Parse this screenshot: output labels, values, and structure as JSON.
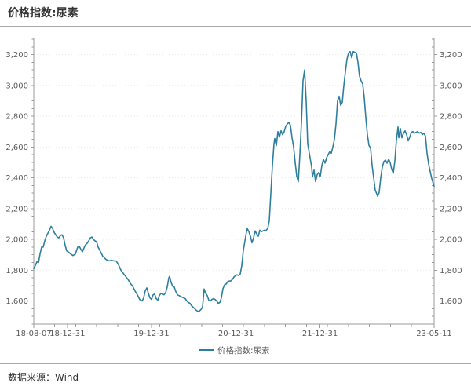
{
  "header": {
    "title": "价格指数:尿素"
  },
  "footer": {
    "source_text": "数据来源：Wind"
  },
  "colors": {
    "line": "#2e7f9e",
    "axis": "#9b9b9b",
    "tick_label": "#595959",
    "grid": "#e7e7e7",
    "title_text": "#333333",
    "divider": "#a9a9a9",
    "footer_text": "#333333"
  },
  "chart_data": {
    "type": "line",
    "title": "价格指数:尿素",
    "legend": "价格指数:尿素",
    "legend_position": "bottom-center",
    "grid": "horizontal-dotted",
    "x_axis": {
      "kind": "time",
      "start_date": "2018-08-07",
      "end_date": "2023-05-11",
      "tick_labels": [
        {
          "label": "18-08-07",
          "t": 0.0
        },
        {
          "label": "18-12-31",
          "t": 0.084
        },
        {
          "label": "19-12-31",
          "t": 0.294
        },
        {
          "label": "20-12-31",
          "t": 0.505
        },
        {
          "label": "21-12-31",
          "t": 0.715
        },
        {
          "label": "23-05-11",
          "t": 1.0
        }
      ],
      "minor_tick_step_t": 0.0524
    },
    "y_axis": {
      "min": 1450,
      "max": 3310,
      "major_ticks": [
        1600,
        1800,
        2000,
        2200,
        2400,
        2600,
        2800,
        3000,
        3200
      ],
      "minor_step": 50,
      "sides": "both",
      "label_format": "thousands-comma"
    },
    "series": [
      {
        "name": "价格指数:尿素",
        "color": "#2e7f9e",
        "points": [
          [
            0.0,
            1810
          ],
          [
            0.0039,
            1830
          ],
          [
            0.0078,
            1855
          ],
          [
            0.0118,
            1850
          ],
          [
            0.0157,
            1905
          ],
          [
            0.0196,
            1950
          ],
          [
            0.0235,
            1950
          ],
          [
            0.0275,
            1990
          ],
          [
            0.0314,
            2020
          ],
          [
            0.0353,
            2040
          ],
          [
            0.0392,
            2060
          ],
          [
            0.0431,
            2085
          ],
          [
            0.0471,
            2070
          ],
          [
            0.051,
            2045
          ],
          [
            0.0549,
            2030
          ],
          [
            0.0588,
            2015
          ],
          [
            0.0627,
            2010
          ],
          [
            0.0667,
            2025
          ],
          [
            0.0706,
            2030
          ],
          [
            0.0745,
            2010
          ],
          [
            0.0784,
            1960
          ],
          [
            0.0824,
            1925
          ],
          [
            0.0882,
            1915
          ],
          [
            0.0922,
            1905
          ],
          [
            0.098,
            1895
          ],
          [
            0.1039,
            1905
          ],
          [
            0.1098,
            1950
          ],
          [
            0.1137,
            1955
          ],
          [
            0.1176,
            1935
          ],
          [
            0.1216,
            1920
          ],
          [
            0.1255,
            1945
          ],
          [
            0.1294,
            1965
          ],
          [
            0.1333,
            1975
          ],
          [
            0.1373,
            1990
          ],
          [
            0.1412,
            2010
          ],
          [
            0.1451,
            2015
          ],
          [
            0.149,
            2000
          ],
          [
            0.1529,
            1990
          ],
          [
            0.1569,
            1985
          ],
          [
            0.1608,
            1950
          ],
          [
            0.1647,
            1930
          ],
          [
            0.1686,
            1910
          ],
          [
            0.1725,
            1890
          ],
          [
            0.1765,
            1880
          ],
          [
            0.1804,
            1870
          ],
          [
            0.1843,
            1865
          ],
          [
            0.1882,
            1860
          ],
          [
            0.1941,
            1865
          ],
          [
            0.2,
            1860
          ],
          [
            0.2059,
            1860
          ],
          [
            0.2118,
            1835
          ],
          [
            0.2176,
            1800
          ],
          [
            0.2235,
            1780
          ],
          [
            0.2294,
            1760
          ],
          [
            0.2353,
            1740
          ],
          [
            0.2412,
            1715
          ],
          [
            0.2471,
            1695
          ],
          [
            0.2529,
            1665
          ],
          [
            0.2588,
            1640
          ],
          [
            0.2647,
            1610
          ],
          [
            0.2706,
            1600
          ],
          [
            0.2745,
            1620
          ],
          [
            0.2784,
            1665
          ],
          [
            0.2824,
            1685
          ],
          [
            0.2863,
            1650
          ],
          [
            0.2902,
            1620
          ],
          [
            0.2941,
            1610
          ],
          [
            0.298,
            1640
          ],
          [
            0.302,
            1645
          ],
          [
            0.3059,
            1615
          ],
          [
            0.3098,
            1605
          ],
          [
            0.3137,
            1635
          ],
          [
            0.3176,
            1650
          ],
          [
            0.3216,
            1645
          ],
          [
            0.3255,
            1640
          ],
          [
            0.3294,
            1655
          ],
          [
            0.3333,
            1690
          ],
          [
            0.3373,
            1750
          ],
          [
            0.3392,
            1760
          ],
          [
            0.3431,
            1720
          ],
          [
            0.3471,
            1695
          ],
          [
            0.351,
            1690
          ],
          [
            0.3549,
            1660
          ],
          [
            0.3588,
            1640
          ],
          [
            0.3627,
            1635
          ],
          [
            0.3667,
            1630
          ],
          [
            0.3706,
            1625
          ],
          [
            0.3745,
            1620
          ],
          [
            0.3784,
            1615
          ],
          [
            0.3824,
            1600
          ],
          [
            0.3863,
            1590
          ],
          [
            0.3902,
            1585
          ],
          [
            0.3941,
            1570
          ],
          [
            0.398,
            1560
          ],
          [
            0.402,
            1550
          ],
          [
            0.4059,
            1540
          ],
          [
            0.4098,
            1532
          ],
          [
            0.4137,
            1535
          ],
          [
            0.4176,
            1545
          ],
          [
            0.4216,
            1560
          ],
          [
            0.4255,
            1678
          ],
          [
            0.4294,
            1650
          ],
          [
            0.4333,
            1635
          ],
          [
            0.4373,
            1605
          ],
          [
            0.4412,
            1600
          ],
          [
            0.4451,
            1610
          ],
          [
            0.449,
            1615
          ],
          [
            0.4529,
            1610
          ],
          [
            0.4569,
            1600
          ],
          [
            0.4608,
            1585
          ],
          [
            0.4647,
            1590
          ],
          [
            0.4686,
            1620
          ],
          [
            0.4725,
            1680
          ],
          [
            0.4765,
            1705
          ],
          [
            0.4804,
            1710
          ],
          [
            0.4843,
            1725
          ],
          [
            0.4882,
            1730
          ],
          [
            0.4922,
            1730
          ],
          [
            0.4961,
            1740
          ],
          [
            0.5,
            1755
          ],
          [
            0.5039,
            1765
          ],
          [
            0.5078,
            1770
          ],
          [
            0.5118,
            1765
          ],
          [
            0.5157,
            1775
          ],
          [
            0.5196,
            1830
          ],
          [
            0.5235,
            1930
          ],
          [
            0.5275,
            1990
          ],
          [
            0.5314,
            2050
          ],
          [
            0.5333,
            2070
          ],
          [
            0.5373,
            2050
          ],
          [
            0.5412,
            2020
          ],
          [
            0.5451,
            1978
          ],
          [
            0.549,
            2010
          ],
          [
            0.5529,
            2055
          ],
          [
            0.5569,
            2035
          ],
          [
            0.5608,
            2020
          ],
          [
            0.5647,
            2060
          ],
          [
            0.5686,
            2050
          ],
          [
            0.5725,
            2055
          ],
          [
            0.5765,
            2060
          ],
          [
            0.5804,
            2058
          ],
          [
            0.5843,
            2070
          ],
          [
            0.5882,
            2120
          ],
          [
            0.5922,
            2300
          ],
          [
            0.5961,
            2480
          ],
          [
            0.6,
            2620
          ],
          [
            0.602,
            2655
          ],
          [
            0.6059,
            2610
          ],
          [
            0.6098,
            2700
          ],
          [
            0.6137,
            2665
          ],
          [
            0.6176,
            2705
          ],
          [
            0.6216,
            2680
          ],
          [
            0.6255,
            2700
          ],
          [
            0.6294,
            2735
          ],
          [
            0.6333,
            2750
          ],
          [
            0.6373,
            2760
          ],
          [
            0.6412,
            2740
          ],
          [
            0.6451,
            2660
          ],
          [
            0.649,
            2600
          ],
          [
            0.6529,
            2500
          ],
          [
            0.6569,
            2410
          ],
          [
            0.6608,
            2375
          ],
          [
            0.6647,
            2550
          ],
          [
            0.6686,
            2760
          ],
          [
            0.6725,
            3030
          ],
          [
            0.6765,
            3100
          ],
          [
            0.6804,
            2900
          ],
          [
            0.6843,
            2620
          ],
          [
            0.6863,
            2590
          ],
          [
            0.6902,
            2530
          ],
          [
            0.6941,
            2470
          ],
          [
            0.6961,
            2405
          ],
          [
            0.7,
            2450
          ],
          [
            0.7039,
            2375
          ],
          [
            0.7078,
            2420
          ],
          [
            0.7118,
            2435
          ],
          [
            0.7157,
            2410
          ],
          [
            0.7196,
            2480
          ],
          [
            0.7235,
            2520
          ],
          [
            0.7275,
            2495
          ],
          [
            0.7314,
            2530
          ],
          [
            0.7353,
            2550
          ],
          [
            0.7392,
            2570
          ],
          [
            0.7431,
            2560
          ],
          [
            0.7471,
            2600
          ],
          [
            0.751,
            2650
          ],
          [
            0.7549,
            2750
          ],
          [
            0.7588,
            2900
          ],
          [
            0.7627,
            2930
          ],
          [
            0.7667,
            2870
          ],
          [
            0.7706,
            2890
          ],
          [
            0.7745,
            3000
          ],
          [
            0.7784,
            3090
          ],
          [
            0.7824,
            3170
          ],
          [
            0.7863,
            3210
          ],
          [
            0.7902,
            3220
          ],
          [
            0.7941,
            3180
          ],
          [
            0.798,
            3220
          ],
          [
            0.802,
            3215
          ],
          [
            0.8059,
            3210
          ],
          [
            0.8098,
            3150
          ],
          [
            0.8137,
            3060
          ],
          [
            0.8176,
            3030
          ],
          [
            0.8216,
            3010
          ],
          [
            0.8255,
            2920
          ],
          [
            0.8294,
            2790
          ],
          [
            0.8333,
            2680
          ],
          [
            0.8373,
            2610
          ],
          [
            0.8412,
            2595
          ],
          [
            0.8451,
            2480
          ],
          [
            0.849,
            2400
          ],
          [
            0.8529,
            2320
          ],
          [
            0.8569,
            2295
          ],
          [
            0.8588,
            2280
          ],
          [
            0.8627,
            2305
          ],
          [
            0.8667,
            2400
          ],
          [
            0.8706,
            2470
          ],
          [
            0.8745,
            2505
          ],
          [
            0.8784,
            2515
          ],
          [
            0.8824,
            2495
          ],
          [
            0.8863,
            2520
          ],
          [
            0.8902,
            2500
          ],
          [
            0.8941,
            2455
          ],
          [
            0.898,
            2430
          ],
          [
            0.902,
            2510
          ],
          [
            0.9059,
            2645
          ],
          [
            0.9098,
            2730
          ],
          [
            0.9118,
            2660
          ],
          [
            0.9157,
            2720
          ],
          [
            0.9196,
            2660
          ],
          [
            0.9235,
            2690
          ],
          [
            0.9275,
            2705
          ],
          [
            0.9314,
            2680
          ],
          [
            0.9353,
            2640
          ],
          [
            0.9392,
            2665
          ],
          [
            0.9431,
            2695
          ],
          [
            0.9471,
            2700
          ],
          [
            0.951,
            2690
          ],
          [
            0.9549,
            2695
          ],
          [
            0.9588,
            2700
          ],
          [
            0.9627,
            2690
          ],
          [
            0.9667,
            2695
          ],
          [
            0.9706,
            2680
          ],
          [
            0.9745,
            2690
          ],
          [
            0.9784,
            2670
          ],
          [
            0.9824,
            2560
          ],
          [
            0.9863,
            2490
          ],
          [
            0.9902,
            2440
          ],
          [
            0.9941,
            2395
          ],
          [
            0.998,
            2360
          ],
          [
            1.0,
            2345
          ]
        ]
      }
    ]
  }
}
